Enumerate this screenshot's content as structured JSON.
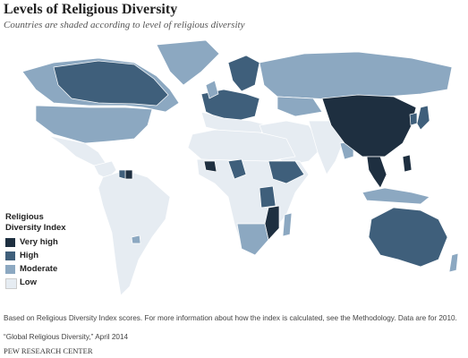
{
  "header": {
    "title": "Levels of Religious Diversity",
    "subtitle": "Countries are shaded according to level of religious diversity"
  },
  "legend": {
    "title": "Religious Diversity Index",
    "items": [
      {
        "label": "Very high",
        "color": "#1e2f40"
      },
      {
        "label": "High",
        "color": "#3f5f7b"
      },
      {
        "label": "Moderate",
        "color": "#8ca8c1"
      },
      {
        "label": "Low",
        "color": "#e6ecf2"
      }
    ]
  },
  "notes": [
    "Based on Religious Diversity Index scores. For more information about how the index is calculated, see the Methodology. Data are for 2010.",
    "“Global Religious Diversity,” April 2014"
  ],
  "footer": "PEW RESEARCH CENTER"
}
